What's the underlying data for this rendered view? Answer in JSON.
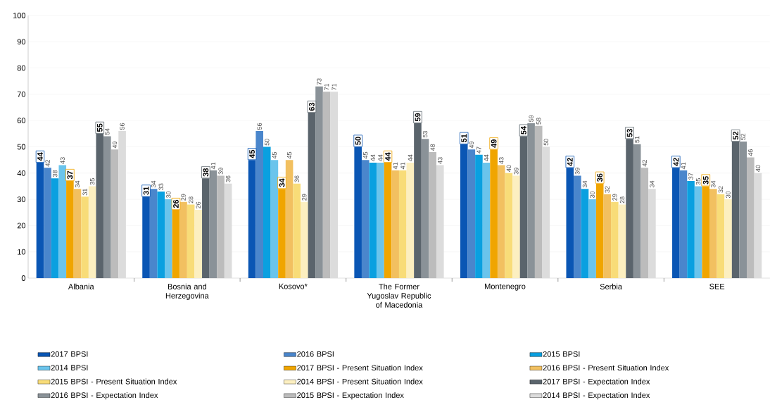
{
  "chart_data": {
    "type": "bar",
    "categories": [
      "Albania",
      "Bosnia and Herzegovina",
      "Kosovo*",
      "The Former Yugoslav Republic of Macedonia",
      "Montenegro",
      "Serbia",
      "SEE"
    ],
    "series": [
      {
        "name": "2017 BPSI",
        "color": "#0a56b4",
        "values": [
          44,
          31,
          45,
          50,
          51,
          42,
          42
        ]
      },
      {
        "name": "2016 BPSI",
        "color": "#4a86cc",
        "values": [
          42,
          34,
          56,
          45,
          49,
          39,
          41
        ]
      },
      {
        "name": "2015 BPSI",
        "color": "#0aa0e0",
        "values": [
          38,
          33,
          50,
          44,
          47,
          34,
          37
        ]
      },
      {
        "name": "2014 BPSI",
        "color": "#6ac4ec",
        "values": [
          43,
          30,
          45,
          44,
          44,
          30,
          35
        ]
      },
      {
        "name": "2017 BPSI - Present Situation Index",
        "color": "#f0a500",
        "values": [
          37,
          26,
          34,
          44,
          49,
          36,
          35
        ]
      },
      {
        "name": "2016 BPSI - Present Situation Index",
        "color": "#f2c060",
        "values": [
          34,
          29,
          45,
          41,
          43,
          32,
          34
        ]
      },
      {
        "name": "2015 BPSI - Present Situation Index",
        "color": "#f8dc78",
        "values": [
          31,
          28,
          36,
          41,
          40,
          29,
          32
        ]
      },
      {
        "name": "2014 BPSI - Present Situation Index",
        "color": "#fcefc0",
        "values": [
          35,
          26,
          29,
          44,
          39,
          28,
          30
        ]
      },
      {
        "name": "2017 BPSI - Expectation Index",
        "color": "#5a646c",
        "values": [
          55,
          38,
          63,
          59,
          54,
          53,
          52
        ]
      },
      {
        "name": "2016 BPSI - Expectation Index",
        "color": "#8a9298",
        "values": [
          54,
          41,
          73,
          53,
          59,
          51,
          52
        ]
      },
      {
        "name": "2015 BPSI - Expectation Index",
        "color": "#bcbcbc",
        "values": [
          49,
          39,
          71,
          48,
          58,
          42,
          46
        ]
      },
      {
        "name": "2014 BPSI - Expectation Index",
        "color": "#dcdcdc",
        "values": [
          56,
          36,
          71,
          43,
          50,
          34,
          40
        ]
      }
    ],
    "ylim": [
      0,
      100
    ],
    "yticks": [
      0,
      10,
      20,
      30,
      40,
      50,
      60,
      70,
      80,
      90,
      100
    ],
    "grid": "y",
    "legend": "bottom",
    "data_labels": true
  }
}
